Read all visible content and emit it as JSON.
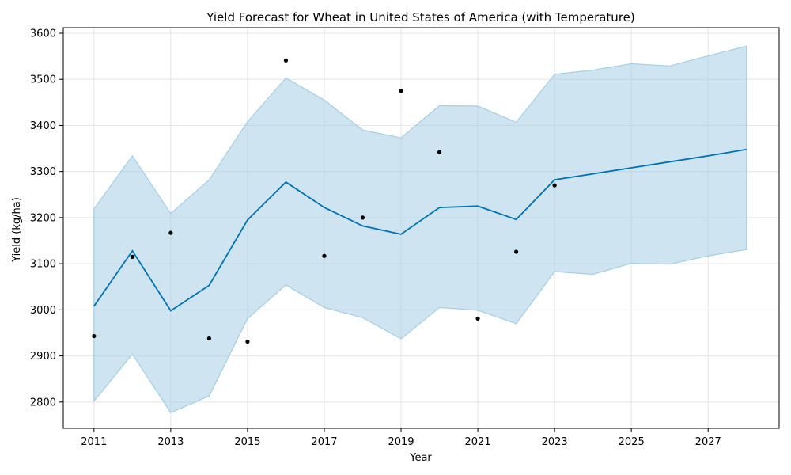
{
  "chart_data": {
    "type": "line",
    "title": "Yield Forecast for Wheat in United States of America (with Temperature)",
    "xlabel": "Year",
    "ylabel": "Yield (kg/ha)",
    "xlim": [
      2010.2,
      2028.85
    ],
    "ylim": [
      2743,
      3612
    ],
    "grid": true,
    "x_ticks": [
      2011,
      2013,
      2015,
      2017,
      2019,
      2021,
      2023,
      2025,
      2027
    ],
    "y_ticks": [
      2800,
      2900,
      3000,
      3100,
      3200,
      3300,
      3400,
      3500,
      3600
    ],
    "forecast": {
      "x": [
        2011,
        2012,
        2013,
        2014,
        2015,
        2016,
        2017,
        2018,
        2019,
        2020,
        2021,
        2022,
        2023,
        2024,
        2025,
        2026,
        2027,
        2028
      ],
      "yhat": [
        3008,
        3128,
        2998,
        3053,
        3195,
        3277,
        3222,
        3182,
        3164,
        3222,
        3225,
        3196,
        3282,
        3295,
        3308,
        3321,
        3334,
        3348
      ],
      "lower": [
        2802,
        2904,
        2777,
        2813,
        2981,
        3054,
        3005,
        2983,
        2937,
        3005,
        2999,
        2970,
        3083,
        3077,
        3101,
        3099,
        3117,
        3131
      ],
      "upper": [
        3219,
        3334,
        3209,
        3282,
        3408,
        3503,
        3455,
        3390,
        3373,
        3443,
        3442,
        3407,
        3511,
        3520,
        3534,
        3529,
        3551,
        3572
      ],
      "line_color": "#0072b2",
      "band_color": "#a6cee3"
    },
    "observed": {
      "x": [
        2011,
        2012,
        2013,
        2014,
        2015,
        2016,
        2017,
        2018,
        2019,
        2020,
        2021,
        2022,
        2023
      ],
      "y": [
        2943,
        3115,
        3167,
        2938,
        2931,
        3541,
        3117,
        3200,
        3475,
        3342,
        2981,
        3126,
        3270
      ],
      "color": "#000000"
    }
  }
}
